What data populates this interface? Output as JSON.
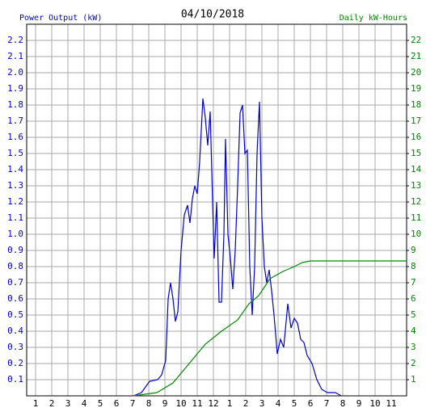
{
  "chart_data": {
    "type": "line",
    "title": "04/10/2018",
    "y_label": "Power Output (kW)",
    "y2_label": "Daily kW-Hours",
    "xlim": [
      0.45,
      23.95
    ],
    "xticks": [
      1,
      2,
      3,
      4,
      5,
      6,
      7,
      8,
      9,
      10,
      11,
      12,
      {
        "value": 13,
        "label": "1"
      },
      {
        "value": 14,
        "label": "2"
      },
      {
        "value": 15,
        "label": "3"
      },
      {
        "value": 16,
        "label": "4"
      },
      {
        "value": 17,
        "label": "5"
      },
      {
        "value": 18,
        "label": "6"
      },
      {
        "value": 19,
        "label": "7"
      },
      {
        "value": 20,
        "label": "8"
      },
      {
        "value": 21,
        "label": "9"
      },
      {
        "value": 22,
        "label": "10"
      },
      {
        "value": 23,
        "label": "11"
      }
    ],
    "ylim": [
      0,
      2.3
    ],
    "yticks": [
      0.1,
      0.2,
      0.3,
      0.4,
      0.5,
      0.6,
      0.7,
      0.8,
      0.9,
      {
        "value": 1,
        "label": "1.0"
      },
      1.1,
      1.2,
      1.3,
      1.4,
      1.5,
      1.6,
      1.7,
      1.8,
      1.9,
      {
        "value": 2,
        "label": "2.0"
      },
      2.1,
      2.2
    ],
    "y2lim": [
      0,
      23
    ],
    "y2ticks": [
      1,
      2,
      3,
      4,
      5,
      6,
      7,
      8,
      9,
      10,
      11,
      12,
      13,
      14,
      15,
      16,
      17,
      18,
      19,
      20,
      21,
      22
    ],
    "grid": true,
    "series": [
      {
        "name": "Power Output (kW)",
        "color": "#0000cc",
        "x": [
          7.05,
          7.55,
          8.05,
          8.55,
          8.8,
          9.05,
          9.2,
          9.35,
          9.5,
          9.65,
          9.8,
          10.0,
          10.2,
          10.4,
          10.55,
          10.7,
          10.85,
          11.0,
          11.15,
          11.35,
          11.5,
          11.65,
          11.8,
          11.95,
          12.05,
          12.2,
          12.35,
          12.5,
          12.65,
          12.75,
          12.9,
          13.05,
          13.2,
          13.35,
          13.5,
          13.65,
          13.8,
          13.95,
          14.1,
          14.25,
          14.4,
          14.55,
          14.7,
          14.85,
          15.0,
          15.15,
          15.3,
          15.45,
          15.6,
          15.75,
          15.95,
          16.15,
          16.35,
          16.6,
          16.8,
          17.0,
          17.2,
          17.4,
          17.6,
          17.8,
          18.1,
          18.4,
          18.7,
          19.05,
          19.55,
          19.9
        ],
        "values": [
          0,
          0.02,
          0.09,
          0.1,
          0.13,
          0.22,
          0.6,
          0.7,
          0.6,
          0.46,
          0.52,
          0.9,
          1.12,
          1.18,
          1.07,
          1.22,
          1.3,
          1.25,
          1.45,
          1.84,
          1.72,
          1.55,
          1.76,
          1.2,
          0.85,
          1.2,
          0.58,
          0.58,
          1.0,
          1.59,
          1.0,
          0.85,
          0.66,
          0.9,
          1.3,
          1.75,
          1.8,
          1.5,
          1.52,
          0.8,
          0.5,
          0.8,
          1.5,
          1.82,
          1.1,
          0.8,
          0.7,
          0.78,
          0.65,
          0.5,
          0.26,
          0.35,
          0.3,
          0.57,
          0.42,
          0.48,
          0.45,
          0.35,
          0.33,
          0.25,
          0.2,
          0.1,
          0.04,
          0.02,
          0.02,
          0
        ]
      },
      {
        "name": "Daily kW-Hours",
        "color": "#008800",
        "axis": "y2",
        "x": [
          7.05,
          8.5,
          9.5,
          10.5,
          11.5,
          12.5,
          13.5,
          14.2,
          14.8,
          15.5,
          16.3,
          17.0,
          17.5,
          18.0,
          23.95
        ],
        "values": [
          0,
          0.2,
          0.8,
          2.0,
          3.2,
          4.0,
          4.7,
          5.7,
          6.2,
          7.25,
          7.7,
          8.0,
          8.25,
          8.35,
          8.35
        ]
      }
    ]
  }
}
